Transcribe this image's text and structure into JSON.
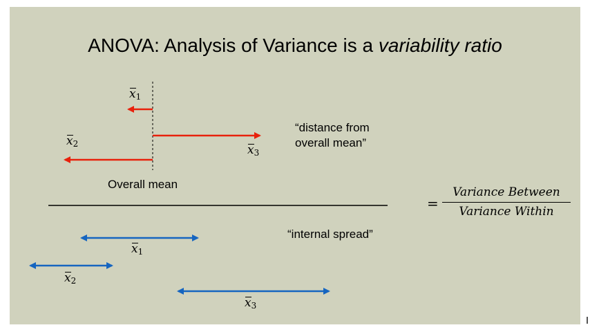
{
  "title": {
    "prefix": "ANOVA: Analysis of Variance is a ",
    "emphasis": "variability ratio"
  },
  "labels": {
    "x_symbol": "x",
    "sub1": "1",
    "sub2": "2",
    "sub3": "3",
    "overall_mean": "Overall mean",
    "distance_from": "“distance from",
    "overall_mean_quote": "overall mean”",
    "internal_spread": "“internal spread”"
  },
  "ratio": {
    "equals": "=",
    "numerator": "Variance Between",
    "denominator": "Variance Within"
  },
  "colors": {
    "between_arrows": "#e8210c",
    "within_arrows": "#1565c0",
    "slide_bg": "#d0d2bd"
  }
}
